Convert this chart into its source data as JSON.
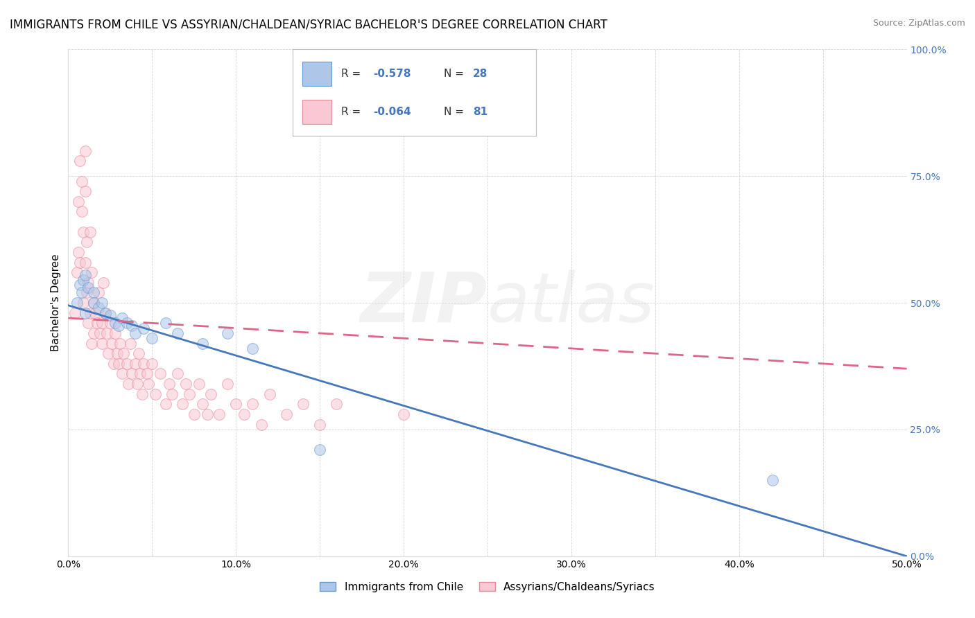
{
  "title": "IMMIGRANTS FROM CHILE VS ASSYRIAN/CHALDEAN/SYRIAC BACHELOR'S DEGREE CORRELATION CHART",
  "source": "Source: ZipAtlas.com",
  "ylabel": "Bachelor's Degree",
  "xlim": [
    0.0,
    0.5
  ],
  "ylim": [
    0.0,
    1.0
  ],
  "xtick_labels": [
    "0.0%",
    "",
    "10.0%",
    "",
    "20.0%",
    "",
    "30.0%",
    "",
    "40.0%",
    "",
    "50.0%"
  ],
  "ytick_labels": [
    "",
    "25.0%",
    "50.0%",
    "75.0%",
    "100.0%"
  ],
  "xtick_vals": [
    0.0,
    0.05,
    0.1,
    0.15,
    0.2,
    0.25,
    0.3,
    0.35,
    0.4,
    0.45,
    0.5
  ],
  "ytick_vals": [
    0.0,
    0.25,
    0.5,
    0.75,
    1.0
  ],
  "left_ytick_labels": [
    "",
    "",
    "",
    "",
    ""
  ],
  "blue_color": "#aec6e8",
  "blue_edge_color": "#6699cc",
  "pink_color": "#f9c8d4",
  "pink_edge_color": "#e88898",
  "blue_line_color": "#4477bb",
  "pink_line_color": "#dd6688",
  "legend_label_blue": "Immigrants from Chile",
  "legend_label_pink": "Assyrians/Chaldeans/Syriacs",
  "blue_r": "-0.578",
  "blue_n": "28",
  "pink_r": "-0.064",
  "pink_n": "81",
  "blue_dots_x": [
    0.005,
    0.007,
    0.008,
    0.009,
    0.01,
    0.01,
    0.012,
    0.015,
    0.015,
    0.018,
    0.02,
    0.022,
    0.025,
    0.028,
    0.03,
    0.032,
    0.035,
    0.038,
    0.04,
    0.045,
    0.05,
    0.058,
    0.065,
    0.08,
    0.095,
    0.11,
    0.15,
    0.42
  ],
  "blue_dots_y": [
    0.5,
    0.535,
    0.52,
    0.545,
    0.555,
    0.48,
    0.53,
    0.52,
    0.5,
    0.49,
    0.5,
    0.48,
    0.475,
    0.46,
    0.455,
    0.47,
    0.46,
    0.455,
    0.44,
    0.45,
    0.43,
    0.46,
    0.44,
    0.42,
    0.44,
    0.41,
    0.21,
    0.15
  ],
  "pink_dots_x": [
    0.004,
    0.005,
    0.006,
    0.006,
    0.007,
    0.007,
    0.008,
    0.008,
    0.009,
    0.009,
    0.01,
    0.01,
    0.01,
    0.011,
    0.011,
    0.012,
    0.012,
    0.013,
    0.013,
    0.014,
    0.014,
    0.015,
    0.015,
    0.016,
    0.017,
    0.018,
    0.019,
    0.02,
    0.02,
    0.021,
    0.022,
    0.023,
    0.024,
    0.025,
    0.026,
    0.027,
    0.028,
    0.029,
    0.03,
    0.031,
    0.032,
    0.033,
    0.035,
    0.036,
    0.037,
    0.038,
    0.04,
    0.041,
    0.042,
    0.043,
    0.044,
    0.045,
    0.047,
    0.048,
    0.05,
    0.052,
    0.055,
    0.058,
    0.06,
    0.062,
    0.065,
    0.068,
    0.07,
    0.072,
    0.075,
    0.078,
    0.08,
    0.083,
    0.085,
    0.09,
    0.095,
    0.1,
    0.105,
    0.11,
    0.115,
    0.12,
    0.13,
    0.14,
    0.15,
    0.16,
    0.2
  ],
  "pink_dots_y": [
    0.48,
    0.56,
    0.6,
    0.7,
    0.58,
    0.78,
    0.68,
    0.74,
    0.5,
    0.64,
    0.72,
    0.58,
    0.8,
    0.62,
    0.52,
    0.54,
    0.46,
    0.64,
    0.48,
    0.56,
    0.42,
    0.5,
    0.44,
    0.48,
    0.46,
    0.52,
    0.44,
    0.46,
    0.42,
    0.54,
    0.48,
    0.44,
    0.4,
    0.46,
    0.42,
    0.38,
    0.44,
    0.4,
    0.38,
    0.42,
    0.36,
    0.4,
    0.38,
    0.34,
    0.42,
    0.36,
    0.38,
    0.34,
    0.4,
    0.36,
    0.32,
    0.38,
    0.36,
    0.34,
    0.38,
    0.32,
    0.36,
    0.3,
    0.34,
    0.32,
    0.36,
    0.3,
    0.34,
    0.32,
    0.28,
    0.34,
    0.3,
    0.28,
    0.32,
    0.28,
    0.34,
    0.3,
    0.28,
    0.3,
    0.26,
    0.32,
    0.28,
    0.3,
    0.26,
    0.3,
    0.28
  ],
  "blue_line_y0": 0.495,
  "blue_line_y1": 0.0,
  "pink_line_y0": 0.47,
  "pink_line_y1": 0.37,
  "background_color": "#ffffff",
  "grid_color": "#cccccc",
  "right_tick_color": "#4477bb",
  "title_fontsize": 12,
  "source_fontsize": 9,
  "axis_label_fontsize": 11,
  "tick_fontsize": 10,
  "dot_size": 130,
  "dot_alpha": 0.55,
  "line_width": 2.0
}
